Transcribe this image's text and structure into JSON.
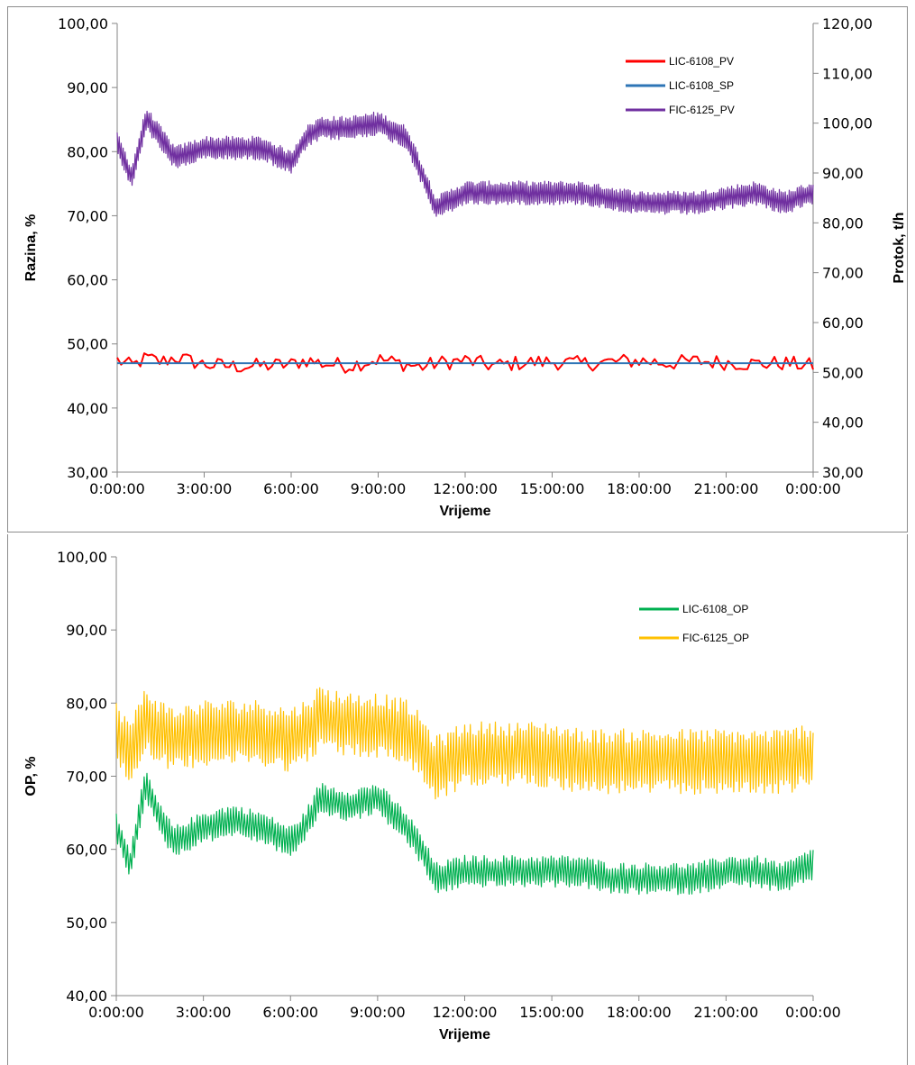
{
  "chart_data": [
    {
      "type": "line",
      "xlabel": "Vrijeme",
      "ylabel": "Razina, %",
      "y2label": "Protok, t/h",
      "ylim": [
        30,
        100
      ],
      "y2lim": [
        30,
        120
      ],
      "yticks": [
        "30,00",
        "40,00",
        "50,00",
        "60,00",
        "70,00",
        "80,00",
        "90,00",
        "100,00"
      ],
      "y2ticks": [
        "30,00",
        "40,00",
        "50,00",
        "60,00",
        "70,00",
        "80,00",
        "90,00",
        "100,00",
        "110,00",
        "120,00"
      ],
      "xticks": [
        "0:00:00",
        "3:00:00",
        "6:00:00",
        "9:00:00",
        "12:00:00",
        "15:00:00",
        "18:00:00",
        "21:00:00",
        "0:00:00"
      ],
      "x_hours": [
        0,
        0.5,
        1,
        1.5,
        2,
        3,
        4,
        5,
        6,
        6.5,
        7,
        8,
        9,
        10,
        10.5,
        11,
        12,
        13,
        14,
        15,
        16,
        17,
        18,
        19,
        20,
        21,
        22,
        23,
        24
      ],
      "legend_position": "top-right",
      "grid": false,
      "series": [
        {
          "name": "LIC-6108_PV",
          "color": "#ff0000",
          "axis": "left",
          "values": [
            47.5,
            46.5,
            47.8,
            47.2,
            47.9,
            46.8,
            46.5,
            46.6,
            46.8,
            47.5,
            47.0,
            46.6,
            47.6,
            46.8,
            46.4,
            47.0,
            47.4,
            46.6,
            47.1,
            47.2,
            46.9,
            47.2,
            47.4,
            47.0,
            47.3,
            47.1,
            46.9,
            47.0,
            46.6
          ]
        },
        {
          "name": "LIC-6108_SP",
          "color": "#2e75b6",
          "axis": "left",
          "values": [
            47.0,
            47.0,
            47.0,
            47.0,
            47.0,
            47.0,
            47.0,
            47.0,
            47.0,
            47.0,
            47.0,
            47.0,
            47.0,
            47.0,
            47.0,
            47.0,
            47.0,
            47.0,
            47.0,
            47.0,
            47.0,
            47.0,
            47.0,
            47.0,
            47.0,
            47.0,
            47.0,
            47.0,
            47.0
          ]
        },
        {
          "name": "FIC-6125_PV",
          "color": "#7030a0",
          "axis": "right",
          "values": [
            96,
            89,
            101,
            97,
            93,
            95,
            95,
            95,
            92,
            97,
            99,
            99,
            100,
            97,
            90,
            83,
            86,
            86,
            86,
            86,
            86,
            85,
            84,
            84,
            84,
            85,
            86,
            84,
            86
          ]
        }
      ]
    },
    {
      "type": "line",
      "xlabel": "Vrijeme",
      "ylabel": "OP, %",
      "ylim": [
        40,
        100
      ],
      "yticks": [
        "40,00",
        "50,00",
        "60,00",
        "70,00",
        "80,00",
        "90,00",
        "100,00"
      ],
      "xticks": [
        "0:00:00",
        "3:00:00",
        "6:00:00",
        "9:00:00",
        "12:00:00",
        "15:00:00",
        "18:00:00",
        "21:00:00",
        "0:00:00"
      ],
      "x_hours": [
        0,
        0.5,
        1,
        1.5,
        2,
        3,
        4,
        5,
        6,
        6.5,
        7,
        8,
        9,
        10,
        10.5,
        11,
        12,
        13,
        14,
        15,
        16,
        17,
        18,
        19,
        20,
        21,
        22,
        23,
        24
      ],
      "legend_position": "top-right",
      "grid": false,
      "series": [
        {
          "name": "LIC-6108_OP",
          "color": "#00b050",
          "values": [
            63,
            58,
            69,
            64,
            61,
            63,
            64,
            63,
            61,
            63,
            67,
            66,
            67,
            63,
            60,
            56,
            57,
            57,
            57,
            57,
            57,
            56,
            56,
            56,
            56,
            57,
            57,
            56,
            58
          ]
        },
        {
          "name": "FIC-6125_OP",
          "color": "#ffc000",
          "values": [
            76,
            73,
            78,
            76,
            75,
            76,
            76,
            76,
            75,
            76,
            78,
            77,
            77,
            76,
            74,
            71,
            73,
            73,
            73,
            73,
            72,
            72,
            72,
            72,
            72,
            72,
            72,
            72,
            73
          ]
        }
      ]
    }
  ]
}
